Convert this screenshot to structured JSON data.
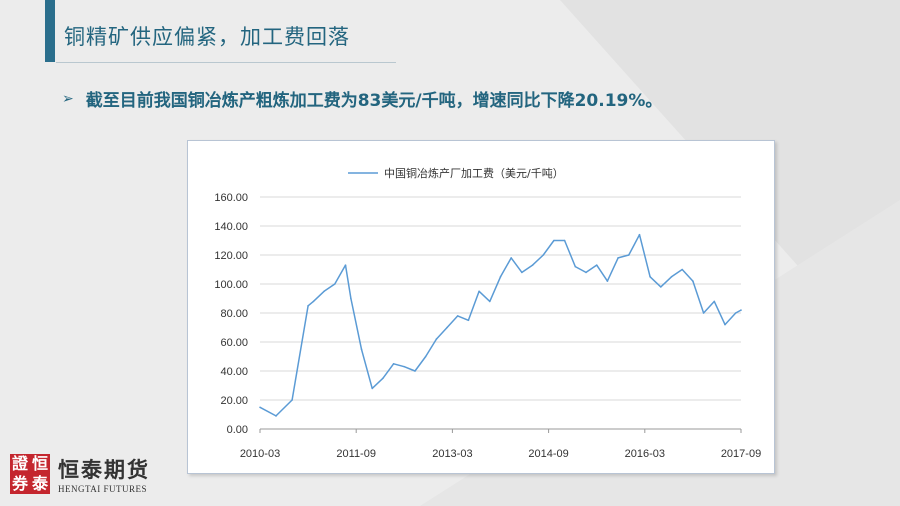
{
  "slide": {
    "title": "铜精矿供应偏紧，加工费回落",
    "bullet_symbol": "➢",
    "bullet_text": "截至目前我国铜冶炼产粗炼加工费为83美元/千吨，增速同比下降20.19%。"
  },
  "logo": {
    "seal_chars": [
      "證",
      "恒",
      "券",
      "泰"
    ],
    "name_cn": "恒泰期货",
    "name_en": "HENGTAI FUTURES"
  },
  "colors": {
    "title": "#23657f",
    "line": "#5b9bd5",
    "seal": "#c4262e"
  },
  "chart_data": {
    "type": "line",
    "title": "",
    "xlabel": "",
    "ylabel": "",
    "ylim": [
      0,
      160
    ],
    "yticks": [
      "0.00",
      "20.00",
      "40.00",
      "60.00",
      "80.00",
      "100.00",
      "120.00",
      "140.00",
      "160.00"
    ],
    "xticks": [
      "2010-03",
      "2011-09",
      "2013-03",
      "2014-09",
      "2016-03",
      "2017-09"
    ],
    "grid": true,
    "legend": "top-center",
    "series": [
      {
        "name": "中国铜冶炼产厂加工费（美元/千吨）",
        "x": [
          "2010-03",
          "2010-06",
          "2010-09",
          "2010-12",
          "2011-01",
          "2011-03",
          "2011-05",
          "2011-07",
          "2011-08",
          "2011-10",
          "2011-12",
          "2012-02",
          "2012-04",
          "2012-06",
          "2012-08",
          "2012-10",
          "2012-12",
          "2013-02",
          "2013-04",
          "2013-06",
          "2013-08",
          "2013-10",
          "2013-12",
          "2014-02",
          "2014-04",
          "2014-06",
          "2014-08",
          "2014-10",
          "2014-12",
          "2015-02",
          "2015-04",
          "2015-06",
          "2015-08",
          "2015-10",
          "2015-12",
          "2016-02",
          "2016-04",
          "2016-06",
          "2016-08",
          "2016-10",
          "2016-12",
          "2017-02",
          "2017-04",
          "2017-06",
          "2017-08",
          "2017-09"
        ],
        "values": [
          15,
          9,
          20,
          85,
          88,
          95,
          100,
          113,
          90,
          55,
          28,
          35,
          45,
          43,
          40,
          50,
          62,
          70,
          78,
          75,
          95,
          88,
          105,
          118,
          108,
          113,
          120,
          130,
          130,
          112,
          108,
          113,
          102,
          118,
          120,
          134,
          105,
          98,
          105,
          110,
          102,
          80,
          88,
          72,
          80,
          82
        ]
      }
    ]
  }
}
